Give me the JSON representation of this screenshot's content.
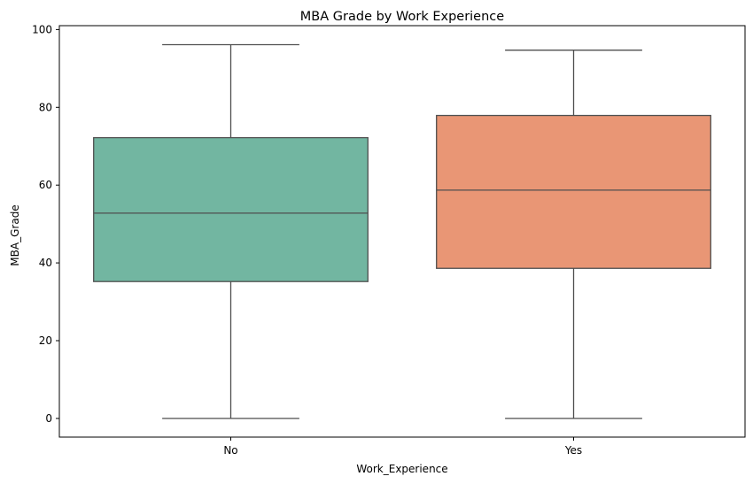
{
  "chart_data": {
    "type": "box",
    "title": "MBA Grade by Work Experience",
    "xlabel": "Work_Experience",
    "ylabel": "MBA_Grade",
    "categories": [
      "No",
      "Yes"
    ],
    "boxes": [
      {
        "category": "No",
        "color": "#72b6a1",
        "min": 0,
        "q1": 35.2,
        "median": 52.8,
        "q3": 72.2,
        "max": 96.1
      },
      {
        "category": "Yes",
        "color": "#e99675",
        "min": 0,
        "q1": 38.6,
        "median": 58.7,
        "q3": 77.9,
        "max": 94.7
      }
    ],
    "yticks": [
      0,
      20,
      40,
      60,
      80,
      100
    ],
    "ylim": [
      -4.8,
      101
    ],
    "grid": false,
    "legend": "none"
  }
}
